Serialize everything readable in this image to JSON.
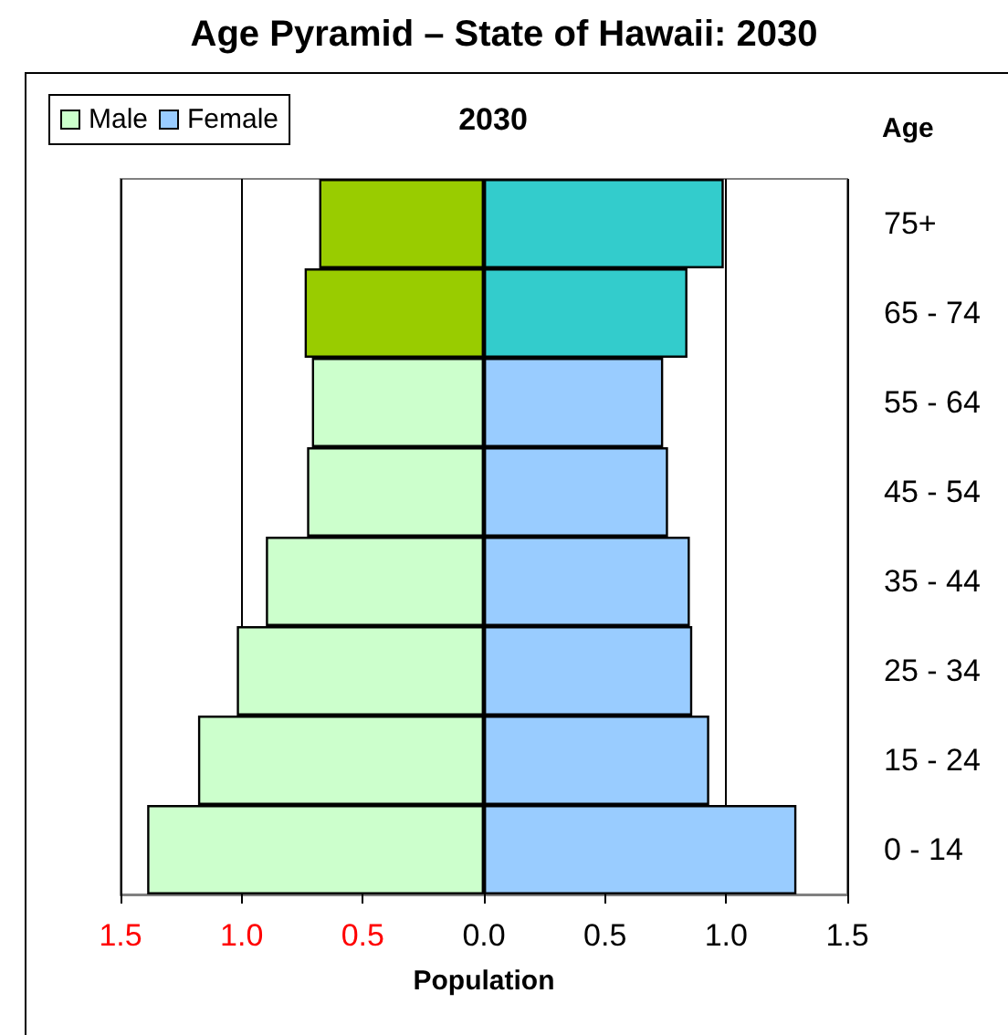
{
  "chart_data": {
    "type": "bar",
    "orientation": "horizontal",
    "title": "Age Pyramid – State of Hawaii: 2030",
    "subtitle": "2030",
    "xlabel": "Population",
    "ylabel": "Age",
    "categories": [
      "75+",
      "65 - 74",
      "55 - 64",
      "45 - 54",
      "35 - 44",
      "25 - 34",
      "15 - 24",
      "0 - 14"
    ],
    "series": [
      {
        "name": "Male",
        "color": "#ccffcc",
        "colors": [
          "#99cc00",
          "#99cc00",
          "#ccffcc",
          "#ccffcc",
          "#ccffcc",
          "#ccffcc",
          "#ccffcc",
          "#ccffcc"
        ],
        "values": [
          -0.68,
          -0.74,
          -0.71,
          -0.73,
          -0.9,
          -1.02,
          -1.18,
          -1.39
        ]
      },
      {
        "name": "Female",
        "color": "#99ccff",
        "colors": [
          "#33cccc",
          "#33cccc",
          "#99ccff",
          "#99ccff",
          "#99ccff",
          "#99ccff",
          "#99ccff",
          "#99ccff"
        ],
        "values": [
          0.99,
          0.84,
          0.74,
          0.76,
          0.85,
          0.86,
          0.93,
          1.29
        ]
      }
    ],
    "xlim": [
      -1.5,
      1.5
    ],
    "xticks": [
      {
        "value": -1.5,
        "label": "1.5"
      },
      {
        "value": -1,
        "label": "1.0"
      },
      {
        "value": -0.5,
        "label": "0.5"
      },
      {
        "value": 0,
        "label": "0.0"
      },
      0.5,
      {
        "value": 1,
        "label": "1.0"
      },
      1.5
    ],
    "grid": "x",
    "legend": "top left",
    "stacked": true
  }
}
